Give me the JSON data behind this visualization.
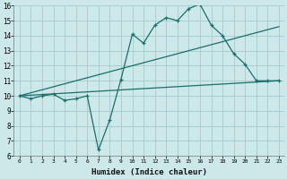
{
  "xlabel": "Humidex (Indice chaleur)",
  "xlim": [
    -0.5,
    23.5
  ],
  "ylim": [
    6,
    16
  ],
  "yticks": [
    6,
    7,
    8,
    9,
    10,
    11,
    12,
    13,
    14,
    15,
    16
  ],
  "xticks": [
    0,
    1,
    2,
    3,
    4,
    5,
    6,
    7,
    8,
    9,
    10,
    11,
    12,
    13,
    14,
    15,
    16,
    17,
    18,
    19,
    20,
    21,
    22,
    23
  ],
  "bg_color": "#cce8e8",
  "line_color": "#1a6e6e",
  "grid_color": "#aacfcf",
  "line1_x": [
    0,
    1,
    2,
    3,
    4,
    5,
    6,
    7,
    8,
    9,
    10,
    11,
    12,
    13,
    14,
    15,
    16,
    17,
    18,
    19,
    20,
    21,
    22,
    23
  ],
  "line1_y": [
    10.0,
    9.8,
    10.0,
    10.1,
    9.7,
    9.8,
    10.0,
    6.4,
    8.4,
    11.1,
    14.1,
    13.5,
    14.7,
    15.2,
    15.0,
    15.8,
    16.1,
    14.7,
    14.0,
    12.8,
    12.1,
    11.0,
    11.0,
    11.0
  ],
  "line2_x": [
    0,
    23
  ],
  "line2_y": [
    10.0,
    14.6
  ],
  "line3_x": [
    0,
    23
  ],
  "line3_y": [
    10.0,
    11.0
  ]
}
